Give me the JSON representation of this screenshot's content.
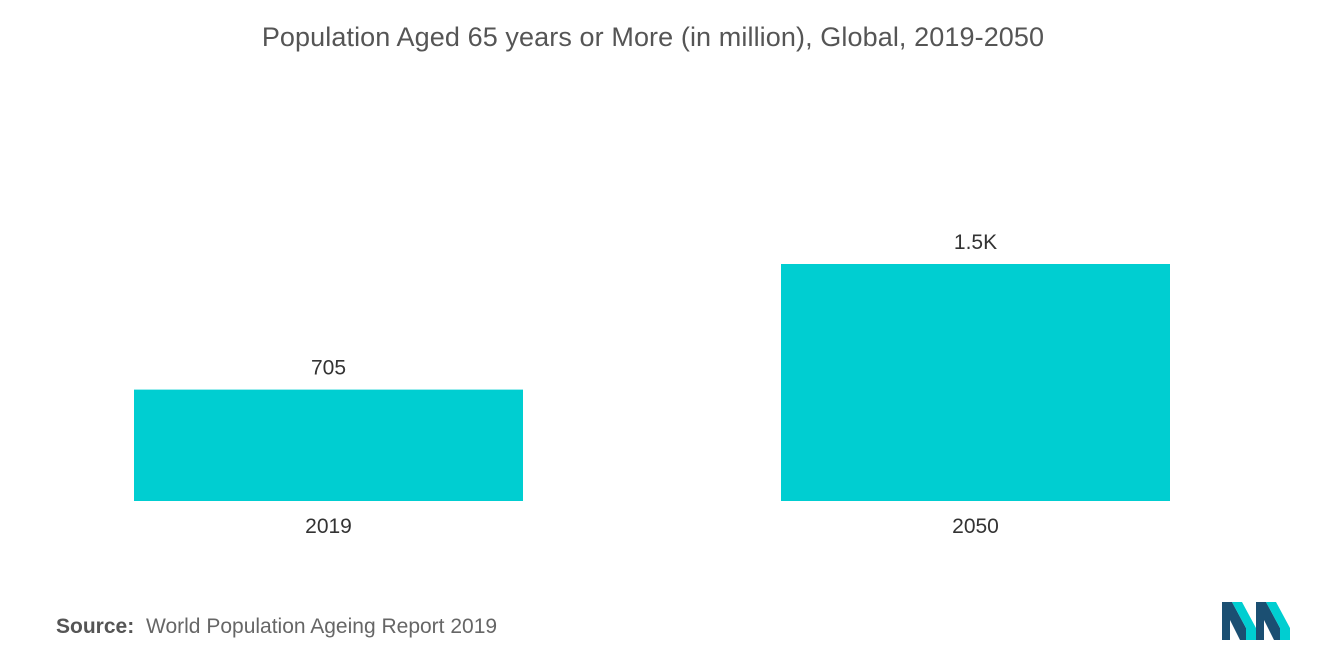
{
  "chart_data": {
    "type": "bar",
    "title": "Population Aged 65 years or More (in million), Global, 2019-2050",
    "categories": [
      "2019",
      "2050"
    ],
    "values": [
      705,
      1500
    ],
    "data_labels": [
      "705",
      "1.5K"
    ],
    "xlabel": "",
    "ylabel": "",
    "ylim": [
      0,
      2000
    ],
    "grid": false,
    "legend": "none",
    "bar_color": "#00CED1"
  },
  "source": {
    "label": "Source:",
    "text": "World Population Ageing Report 2019"
  },
  "logo": {
    "icon": "mordor-intelligence-logo-icon",
    "colors": [
      "#1b4f72",
      "#00CED1"
    ]
  }
}
